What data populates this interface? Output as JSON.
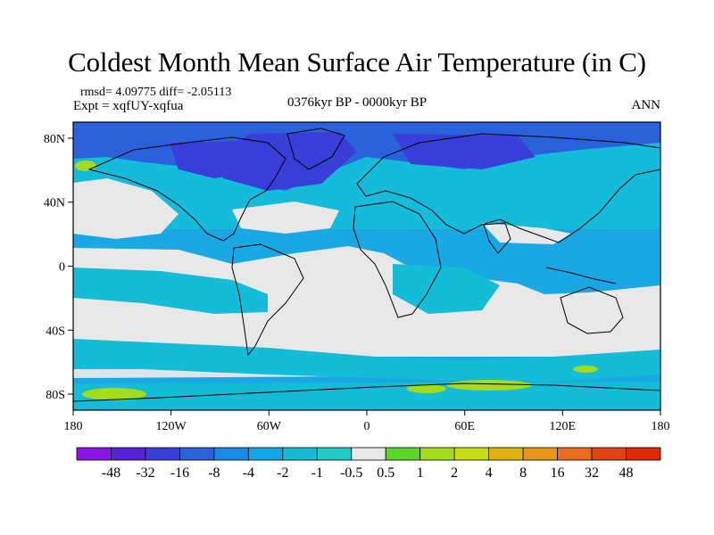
{
  "header": {
    "title": "Coldest Month Mean Surface Air Temperature (in C)",
    "stats": "rmsd= 4.09775 diff= -2.05113",
    "experiment": "Expt = xqfUY-xqfua",
    "period": "0376kyr BP - 0000kyr BP",
    "season": "ANN"
  },
  "chart_data": {
    "type": "heatmap",
    "projection": "equirectangular",
    "x_ticks": [
      {
        "lon": -180,
        "label": "180"
      },
      {
        "lon": -120,
        "label": "120W"
      },
      {
        "lon": -60,
        "label": "60W"
      },
      {
        "lon": 0,
        "label": "0"
      },
      {
        "lon": 60,
        "label": "60E"
      },
      {
        "lon": 120,
        "label": "120E"
      },
      {
        "lon": 180,
        "label": "180"
      }
    ],
    "y_ticks": [
      {
        "lat": 80,
        "label": "80N"
      },
      {
        "lat": 40,
        "label": "40N"
      },
      {
        "lat": 0,
        "label": "0"
      },
      {
        "lat": -40,
        "label": "40S"
      },
      {
        "lat": -80,
        "label": "80S"
      }
    ],
    "xlim": [
      -180,
      180
    ],
    "ylim": [
      -90,
      90
    ],
    "colorbar": {
      "levels": [
        "-48",
        "-32",
        "-16",
        "-8",
        "-4",
        "-2",
        "-1",
        "-0.5",
        "0.5",
        "1",
        "2",
        "4",
        "8",
        "16",
        "32",
        "48"
      ],
      "colors": [
        "#8a13e6",
        "#5a20d8",
        "#3a3ed8",
        "#2a62dc",
        "#1a8ae6",
        "#12a6e8",
        "#14bcd8",
        "#22ccc6",
        "#e8e8e8",
        "#5cd62a",
        "#a2dc1a",
        "#c8dc14",
        "#e0b210",
        "#e8941a",
        "#e86c1c",
        "#e04214",
        "#e02a08"
      ]
    },
    "colors": {
      "background_ocean": "#1aa8e4",
      "neutral": "#e8e8e8",
      "cold_land": "#2a62dc",
      "arctic": "#3a3ed8",
      "moderate_cold": "#14bcd8",
      "warm_patch": "#a2dc1a"
    }
  }
}
